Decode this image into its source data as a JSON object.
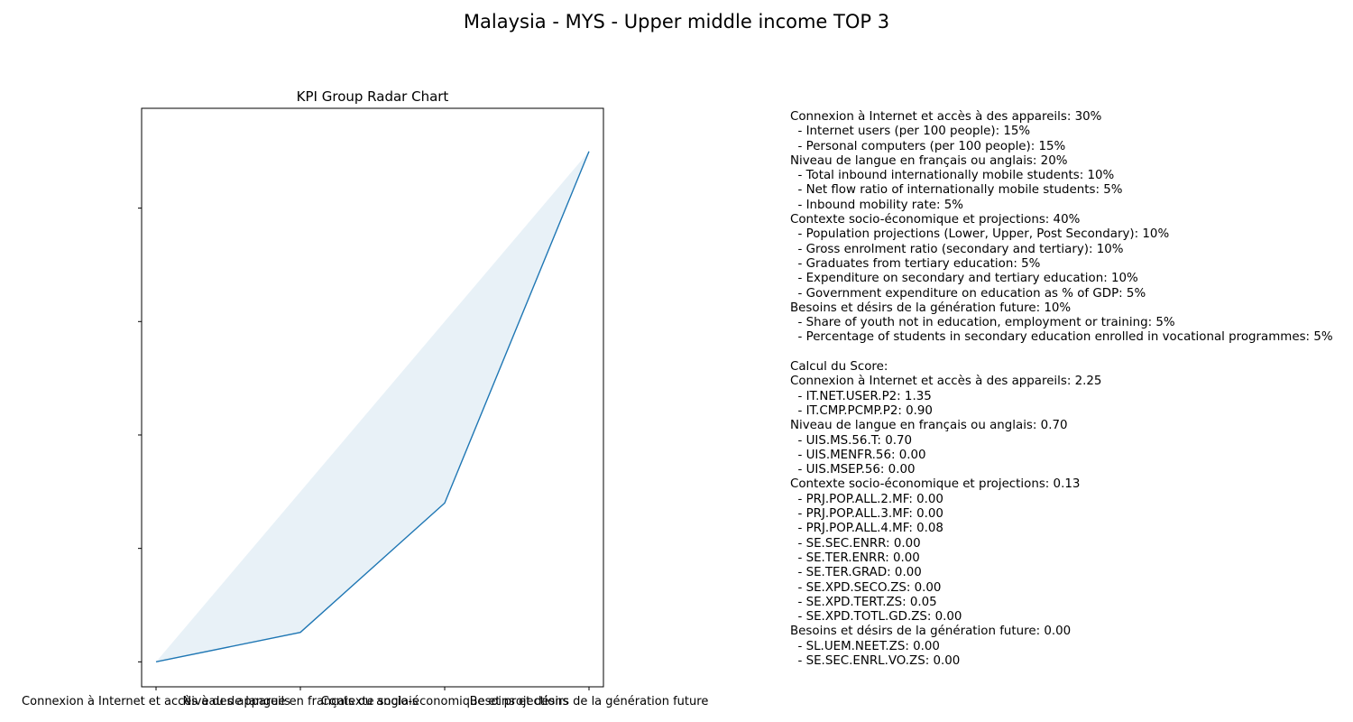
{
  "figure": {
    "suptitle": "Malaysia - MYS - Upper middle income TOP 3"
  },
  "chart_data": {
    "type": "area",
    "title": "KPI Group Radar Chart",
    "categories": [
      "Connexion à Internet et accès à des appareils",
      "Niveau de langue en français ou anglais",
      "Contexte socio-économique et projections",
      "Besoins et désirs de la génération future"
    ],
    "values": [
      2.25,
      0.7,
      0.13,
      0.0
    ],
    "y_tick_labels_visible": false,
    "grid": false,
    "line_color": "#1f77b4",
    "fill_color": "#1f77b4",
    "fill_opacity": 0.1
  },
  "info_lines": [
    "Connexion à Internet et accès à des appareils: 30%",
    "  - Internet users (per 100 people): 15%",
    "  - Personal computers (per 100 people): 15%",
    "Niveau de langue en français ou anglais: 20%",
    "  - Total inbound internationally mobile students: 10%",
    "  - Net flow ratio of internationally mobile students: 5%",
    "  - Inbound mobility rate: 5%",
    "Contexte socio-économique et projections: 40%",
    "  - Population projections (Lower, Upper, Post Secondary): 10%",
    "  - Gross enrolment ratio (secondary and tertiary): 10%",
    "  - Graduates from tertiary education: 5%",
    "  - Expenditure on secondary and tertiary education: 10%",
    "  - Government expenditure on education as % of GDP: 5%",
    "Besoins et désirs de la génération future: 10%",
    "  - Share of youth not in education, employment or training: 5%",
    "  - Percentage of students in secondary education enrolled in vocational programmes: 5%",
    "",
    "Calcul du Score:",
    "Connexion à Internet et accès à des appareils: 2.25",
    "  - IT.NET.USER.P2: 1.35",
    "  - IT.CMP.PCMP.P2: 0.90",
    "Niveau de langue en français ou anglais: 0.70",
    "  - UIS.MS.56.T: 0.70",
    "  - UIS.MENFR.56: 0.00",
    "  - UIS.MSEP.56: 0.00",
    "Contexte socio-économique et projections: 0.13",
    "  - PRJ.POP.ALL.2.MF: 0.00",
    "  - PRJ.POP.ALL.3.MF: 0.00",
    "  - PRJ.POP.ALL.4.MF: 0.08",
    "  - SE.SEC.ENRR: 0.00",
    "  - SE.TER.ENRR: 0.00",
    "  - SE.TER.GRAD: 0.00",
    "  - SE.XPD.SECO.ZS: 0.00",
    "  - SE.XPD.TERT.ZS: 0.05",
    "  - SE.XPD.TOTL.GD.ZS: 0.00",
    "Besoins et désirs de la génération future: 0.00",
    "  - SL.UEM.NEET.ZS: 0.00",
    "  - SE.SEC.ENRL.VO.ZS: 0.00"
  ]
}
